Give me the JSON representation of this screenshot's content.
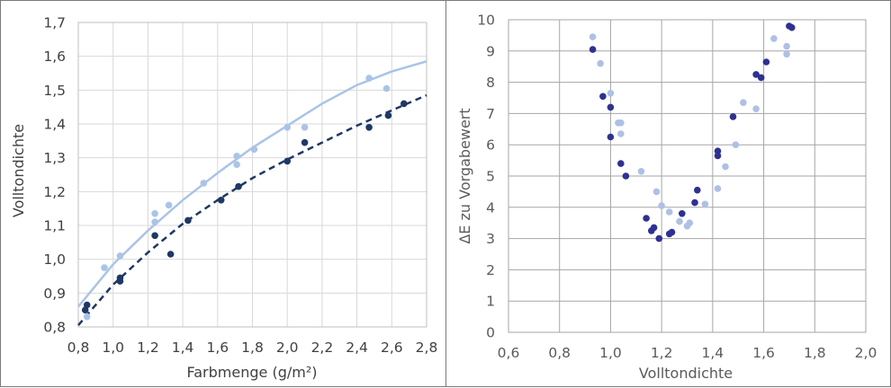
{
  "chart_data": [
    {
      "type": "scatter",
      "xlabel": "Farbmenge (g/m²)",
      "ylabel": "Volltondichte",
      "xlim": [
        0.8,
        2.8
      ],
      "ylim": [
        0.8,
        1.7
      ],
      "x_ticks": [
        "0,8",
        "1,0",
        "1,2",
        "1,4",
        "1,6",
        "1,8",
        "2,0",
        "2,2",
        "2,4",
        "2,6",
        "2,8"
      ],
      "y_ticks": [
        "0,8",
        "0,9",
        "1,0",
        "1,1",
        "1,2",
        "1,3",
        "1,4",
        "1,5",
        "1,6",
        "1,7"
      ],
      "grid": true,
      "colors": {
        "light": "#a9c4e6",
        "dark": "#1f3864"
      },
      "series": [
        {
          "color": "#a9c4e6",
          "points": [
            [
              0.85,
              0.83
            ],
            [
              0.95,
              0.975
            ],
            [
              1.04,
              1.01
            ],
            [
              1.24,
              1.11
            ],
            [
              1.24,
              1.135
            ],
            [
              1.32,
              1.16
            ],
            [
              1.52,
              1.225
            ],
            [
              1.71,
              1.28
            ],
            [
              1.71,
              1.305
            ],
            [
              1.81,
              1.325
            ],
            [
              2.0,
              1.39
            ],
            [
              2.1,
              1.39
            ],
            [
              2.47,
              1.535
            ],
            [
              2.57,
              1.505
            ]
          ],
          "trendline": {
            "style": "solid",
            "points": [
              [
                0.8,
                0.86
              ],
              [
                1.0,
                0.985
              ],
              [
                1.2,
                1.085
              ],
              [
                1.4,
                1.175
              ],
              [
                1.6,
                1.255
              ],
              [
                1.8,
                1.33
              ],
              [
                2.0,
                1.395
              ],
              [
                2.2,
                1.46
              ],
              [
                2.4,
                1.515
              ],
              [
                2.6,
                1.555
              ],
              [
                2.8,
                1.585
              ]
            ]
          }
        },
        {
          "color": "#1f3864",
          "points": [
            [
              0.84,
              0.85
            ],
            [
              0.85,
              0.865
            ],
            [
              1.04,
              0.935
            ],
            [
              1.04,
              0.945
            ],
            [
              1.24,
              1.07
            ],
            [
              1.33,
              1.015
            ],
            [
              1.43,
              1.115
            ],
            [
              1.62,
              1.175
            ],
            [
              1.72,
              1.215
            ],
            [
              2.0,
              1.29
            ],
            [
              2.1,
              1.345
            ],
            [
              2.47,
              1.39
            ],
            [
              2.58,
              1.425
            ],
            [
              2.67,
              1.46
            ]
          ],
          "trendline": {
            "style": "dashed",
            "points": [
              [
                0.8,
                0.805
              ],
              [
                1.0,
                0.925
              ],
              [
                1.2,
                1.02
              ],
              [
                1.4,
                1.105
              ],
              [
                1.6,
                1.175
              ],
              [
                1.8,
                1.24
              ],
              [
                2.0,
                1.295
              ],
              [
                2.2,
                1.345
              ],
              [
                2.4,
                1.395
              ],
              [
                2.6,
                1.44
              ],
              [
                2.8,
                1.485
              ]
            ]
          }
        }
      ]
    },
    {
      "type": "scatter",
      "xlabel": "Volltondichte",
      "ylabel": "ΔE zu Vorgabewert",
      "xlim": [
        0.6,
        2.0
      ],
      "ylim": [
        0,
        10
      ],
      "x_ticks": [
        "0,6",
        "0,8",
        "1,0",
        "1,2",
        "1,4",
        "1,6",
        "1,8",
        "2,0"
      ],
      "y_ticks": [
        "0",
        "1",
        "2",
        "3",
        "4",
        "5",
        "6",
        "7",
        "8",
        "9",
        "10"
      ],
      "grid": true,
      "colors": {
        "light": "#aec0e6",
        "dark": "#2e3192"
      },
      "series": [
        {
          "color": "#aec0e6",
          "points": [
            [
              0.93,
              9.45
            ],
            [
              0.96,
              8.6
            ],
            [
              1.0,
              7.65
            ],
            [
              1.03,
              6.7
            ],
            [
              1.04,
              6.7
            ],
            [
              1.04,
              6.35
            ],
            [
              1.12,
              5.15
            ],
            [
              1.18,
              4.5
            ],
            [
              1.2,
              4.05
            ],
            [
              1.23,
              3.85
            ],
            [
              1.27,
              3.55
            ],
            [
              1.3,
              3.4
            ],
            [
              1.31,
              3.5
            ],
            [
              1.37,
              4.1
            ],
            [
              1.42,
              4.6
            ],
            [
              1.45,
              5.3
            ],
            [
              1.49,
              6.0
            ],
            [
              1.52,
              7.35
            ],
            [
              1.57,
              7.15
            ],
            [
              1.64,
              9.4
            ],
            [
              1.69,
              9.15
            ],
            [
              1.69,
              8.9
            ]
          ],
          "trendline": null
        },
        {
          "color": "#2e3192",
          "points": [
            [
              0.93,
              9.05
            ],
            [
              0.97,
              7.55
            ],
            [
              1.0,
              7.2
            ],
            [
              1.0,
              6.25
            ],
            [
              1.04,
              5.4
            ],
            [
              1.06,
              5.0
            ],
            [
              1.14,
              3.65
            ],
            [
              1.16,
              3.25
            ],
            [
              1.17,
              3.35
            ],
            [
              1.19,
              3.0
            ],
            [
              1.23,
              3.15
            ],
            [
              1.24,
              3.2
            ],
            [
              1.28,
              3.8
            ],
            [
              1.33,
              4.15
            ],
            [
              1.34,
              4.55
            ],
            [
              1.42,
              5.8
            ],
            [
              1.42,
              5.65
            ],
            [
              1.48,
              6.9
            ],
            [
              1.57,
              8.25
            ],
            [
              1.59,
              8.15
            ],
            [
              1.61,
              8.65
            ],
            [
              1.7,
              9.8
            ],
            [
              1.71,
              9.75
            ]
          ],
          "trendline": null
        }
      ]
    }
  ]
}
